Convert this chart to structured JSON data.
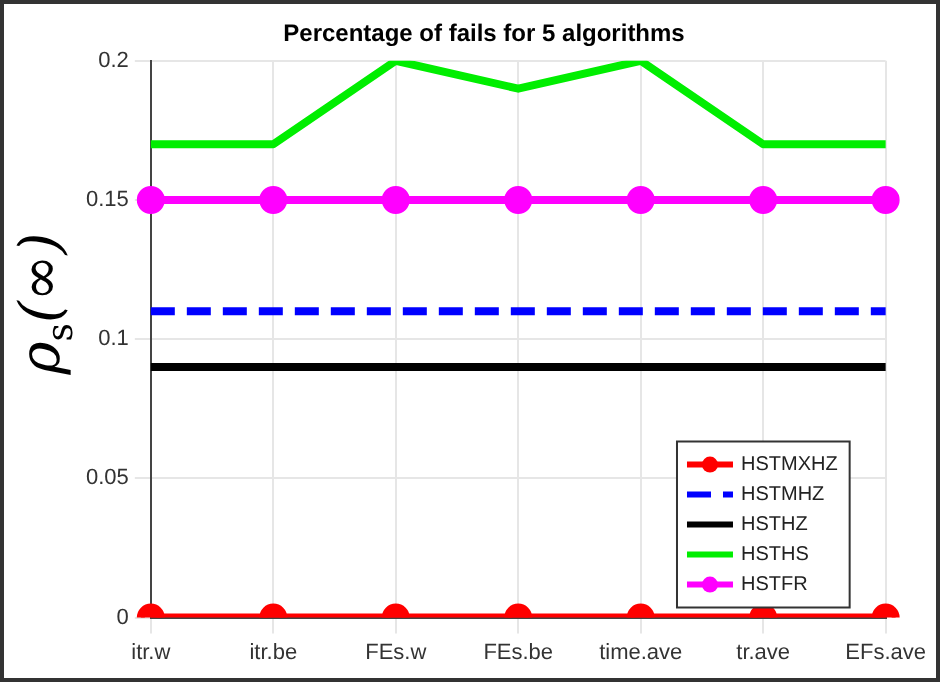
{
  "chart_data": {
    "type": "line",
    "title": "Percentage of fails for 5 algorithms",
    "ylabel": "ρ$_{s}$(∞)",
    "categories": [
      "itr.w",
      "itr.be",
      "FEs.w",
      "FEs.be",
      "time.ave",
      "tr.ave",
      "EFs.ave"
    ],
    "ylim": [
      0,
      0.2
    ],
    "yticks": [
      0,
      0.05,
      0.1,
      0.15,
      0.2
    ],
    "grid": true,
    "legend": "bottom right",
    "series": [
      {
        "name": "HSTMXHZ",
        "color": "#ff0000",
        "values": [
          0,
          0,
          0,
          0,
          0,
          0,
          0
        ],
        "marker": "circle",
        "line_style": "solid"
      },
      {
        "name": "HSTMHZ",
        "color": "#0000ff",
        "values": [
          0.11,
          0.11,
          0.11,
          0.11,
          0.11,
          0.11,
          0.11
        ],
        "marker": "none",
        "line_style": "dashed"
      },
      {
        "name": "HSTHZ",
        "color": "#000000",
        "values": [
          0.09,
          0.09,
          0.09,
          0.09,
          0.09,
          0.09,
          0.09
        ],
        "marker": "none",
        "line_style": "solid"
      },
      {
        "name": "HSTHS",
        "color": "#00ee00",
        "values": [
          0.17,
          0.17,
          0.2,
          0.19,
          0.2,
          0.17,
          0.17
        ],
        "marker": "none",
        "line_style": "solid"
      },
      {
        "name": "HSTFR",
        "color": "#ff00ff",
        "values": [
          0.15,
          0.15,
          0.15,
          0.15,
          0.15,
          0.15,
          0.15
        ],
        "marker": "circle",
        "line_style": "solid"
      }
    ]
  }
}
